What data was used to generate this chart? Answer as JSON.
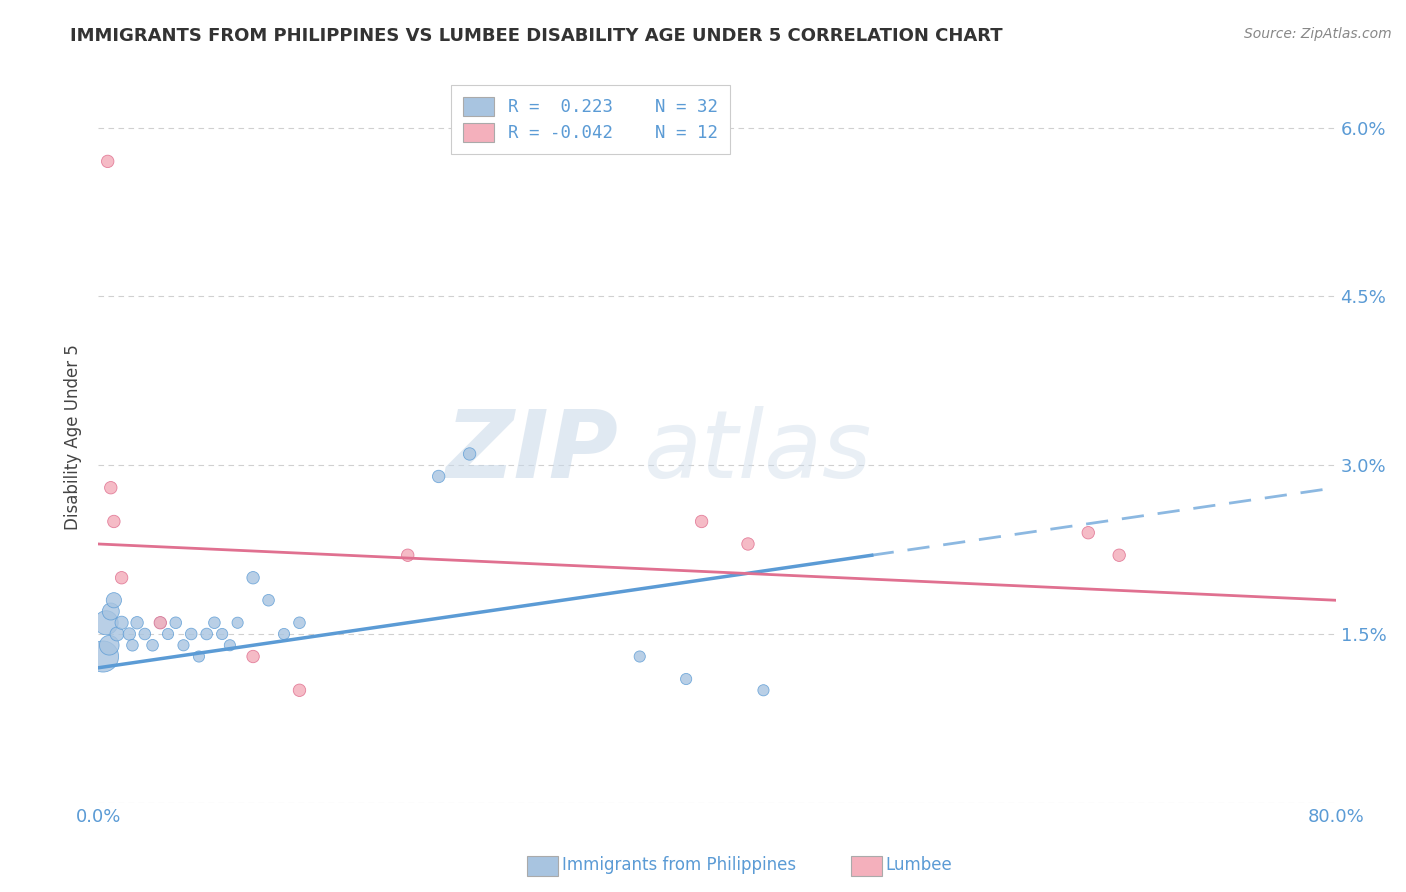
{
  "title": "IMMIGRANTS FROM PHILIPPINES VS LUMBEE DISABILITY AGE UNDER 5 CORRELATION CHART",
  "source": "Source: ZipAtlas.com",
  "ylabel": "Disability Age Under 5",
  "xlim": [
    0.0,
    0.8
  ],
  "ylim": [
    0.0,
    0.065
  ],
  "xticks": [
    0.0,
    0.1,
    0.2,
    0.3,
    0.4,
    0.5,
    0.6,
    0.7,
    0.8
  ],
  "xticklabels": [
    "0.0%",
    "",
    "",
    "",
    "",
    "",
    "",
    "",
    "80.0%"
  ],
  "yticks": [
    0.0,
    0.015,
    0.03,
    0.045,
    0.06
  ],
  "yticklabels": [
    "",
    "1.5%",
    "3.0%",
    "4.5%",
    "6.0%"
  ],
  "legend_r1": "R =  0.223",
  "legend_n1": "N = 32",
  "legend_r2": "R = -0.042",
  "legend_n2": "N = 12",
  "blue_color": "#a8c4e0",
  "pink_color": "#f4b0bc",
  "blue_line_color": "#5b9bd5",
  "pink_line_color": "#e07090",
  "grid_color": "#d0d0d0",
  "watermark_zip": "ZIP",
  "watermark_atlas": "atlas",
  "blue_scatter_x": [
    0.003,
    0.005,
    0.007,
    0.008,
    0.01,
    0.012,
    0.015,
    0.02,
    0.022,
    0.025,
    0.03,
    0.035,
    0.04,
    0.045,
    0.05,
    0.055,
    0.06,
    0.065,
    0.07,
    0.075,
    0.08,
    0.085,
    0.09,
    0.1,
    0.11,
    0.12,
    0.13,
    0.22,
    0.24,
    0.35,
    0.38,
    0.43
  ],
  "blue_scatter_y": [
    0.013,
    0.016,
    0.014,
    0.017,
    0.018,
    0.015,
    0.016,
    0.015,
    0.014,
    0.016,
    0.015,
    0.014,
    0.016,
    0.015,
    0.016,
    0.014,
    0.015,
    0.013,
    0.015,
    0.016,
    0.015,
    0.014,
    0.016,
    0.02,
    0.018,
    0.015,
    0.016,
    0.029,
    0.031,
    0.013,
    0.011,
    0.01
  ],
  "blue_scatter_sizes": [
    500,
    300,
    200,
    150,
    120,
    100,
    90,
    80,
    70,
    80,
    70,
    70,
    70,
    65,
    70,
    65,
    70,
    65,
    70,
    70,
    65,
    65,
    65,
    80,
    70,
    65,
    70,
    80,
    80,
    65,
    65,
    65
  ],
  "pink_scatter_x": [
    0.006,
    0.008,
    0.01,
    0.015,
    0.04,
    0.1,
    0.13,
    0.2,
    0.39,
    0.42,
    0.64,
    0.66
  ],
  "pink_scatter_y": [
    0.057,
    0.028,
    0.025,
    0.02,
    0.016,
    0.013,
    0.01,
    0.022,
    0.025,
    0.023,
    0.024,
    0.022
  ],
  "pink_scatter_sizes": [
    80,
    80,
    80,
    80,
    80,
    80,
    80,
    80,
    80,
    80,
    80,
    80
  ],
  "blue_trend_x": [
    0.0,
    0.5,
    0.8
  ],
  "blue_trend_y": [
    0.012,
    0.022,
    0.028
  ],
  "pink_trend_x": [
    0.0,
    0.8
  ],
  "pink_trend_y": [
    0.023,
    0.018
  ],
  "background_color": "#ffffff"
}
